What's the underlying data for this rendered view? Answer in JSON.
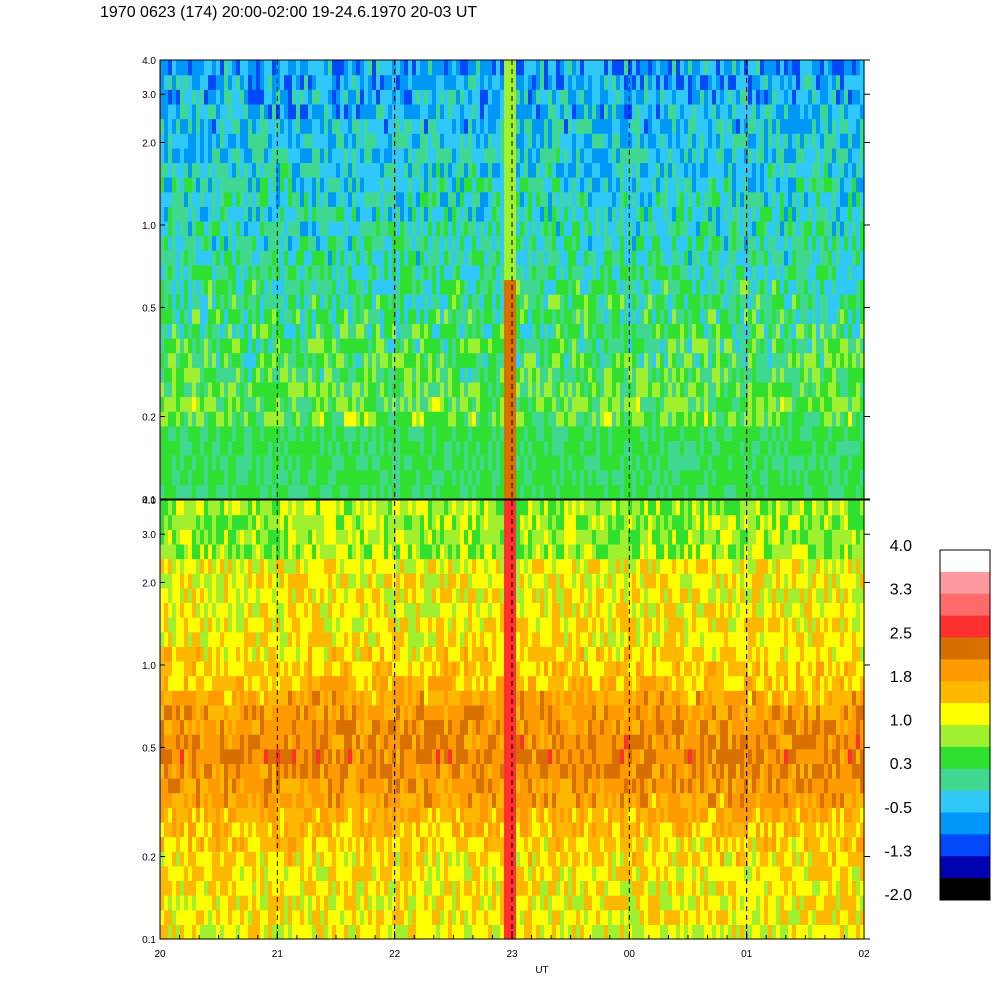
{
  "title": "1970 0623 (174) 20:00-02:00 19-24.6.1970  20-03 UT",
  "chart_data": {
    "type": "heatmap",
    "title": "1970 0623 (174) 20:00-02:00 19-24.6.1970  20-03 UT",
    "xlabel": "UT",
    "x_tick_labels": [
      "20",
      "21",
      "22",
      "23",
      "00",
      "01",
      "02"
    ],
    "x_hours": [
      0,
      1,
      2,
      3,
      4,
      5,
      6
    ],
    "xlim": [
      0,
      6
    ],
    "y_scale": "log",
    "ylim": [
      0.1,
      4.0
    ],
    "y_ticks": [
      0.1,
      0.2,
      0.5,
      1.0,
      2.0,
      3.0,
      4.0
    ],
    "y_tick_labels": [
      "0.1",
      "0.2",
      "0.5",
      "1.0",
      "2.0",
      "3.0",
      "4.0"
    ],
    "panels": [
      {
        "name": "upper",
        "dominant_level_range": [
          0.0,
          1.0
        ]
      },
      {
        "name": "lower",
        "dominant_level_range": [
          1.0,
          2.5
        ]
      }
    ],
    "colorbar": {
      "labels": [
        "4.0",
        "3.3",
        "2.5",
        "1.8",
        "1.0",
        "0.3",
        "-0.5",
        "-1.3",
        "-2.0"
      ],
      "range": [
        -2.0,
        4.0
      ],
      "colors": [
        "#ffffff",
        "#ff9aa0",
        "#ff6a6a",
        "#ff3030",
        "#d87000",
        "#ff9a00",
        "#ffb800",
        "#ffff00",
        "#a0f030",
        "#30e030",
        "#40d890",
        "#30c8f8",
        "#0098f8",
        "#0048f8",
        "#0000b0",
        "#000000"
      ]
    },
    "vertical_dashed_lines_at_hours": [
      1,
      2,
      3,
      4,
      5
    ],
    "grid": false
  }
}
